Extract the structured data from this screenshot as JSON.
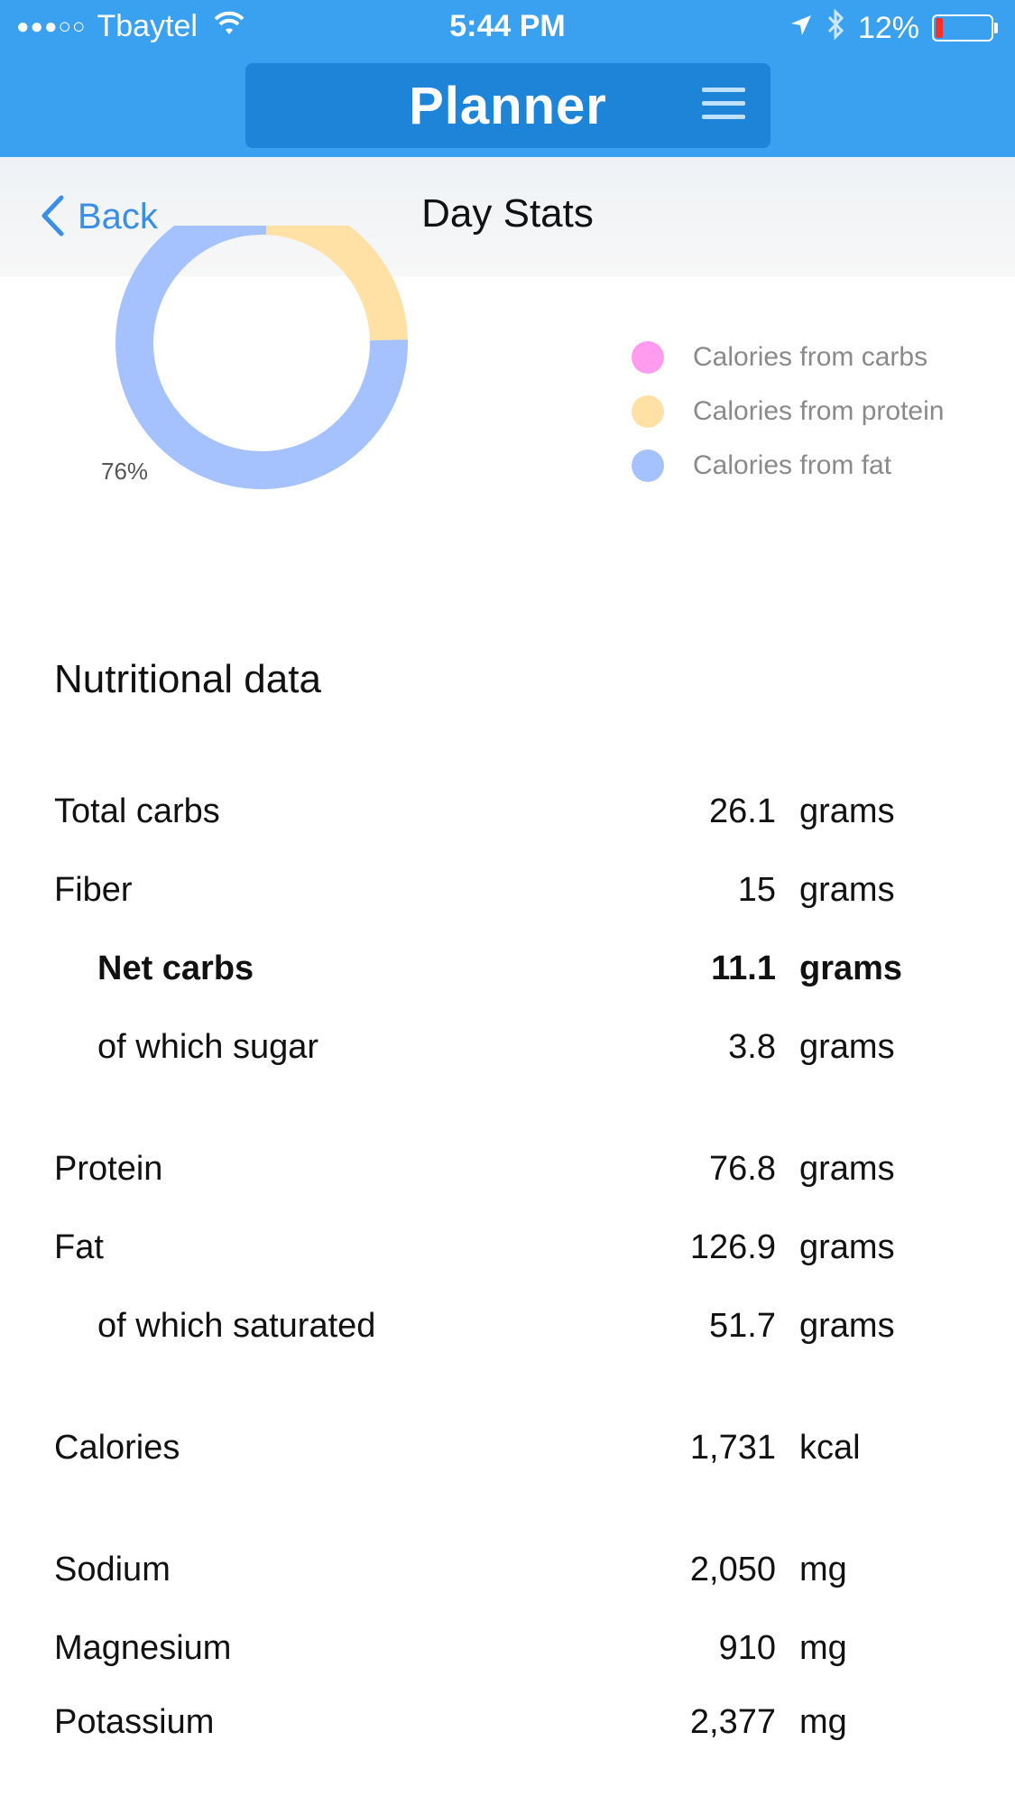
{
  "status_bar": {
    "signal": "●●●○○",
    "carrier": "Tbaytel",
    "time": "5:44 PM",
    "battery": "12%"
  },
  "header": {
    "title": "Planner"
  },
  "nav": {
    "back_label": "Back",
    "title": "Day Stats"
  },
  "chart_data": {
    "type": "pie",
    "slices": [
      {
        "name": "Calories from carbs",
        "value": 0,
        "color": "#ff9cf0"
      },
      {
        "name": "Calories from protein",
        "value": 24,
        "color": "#ffe1a6"
      },
      {
        "name": "Calories from fat",
        "value": 76,
        "color": "#a5c2ff"
      }
    ],
    "labels": [
      "76%"
    ]
  },
  "legend": [
    {
      "label": "Calories from carbs",
      "color": "#ff9cf0"
    },
    {
      "label": "Calories from protein",
      "color": "#ffe1a6"
    },
    {
      "label": "Calories from fat",
      "color": "#a5c2ff"
    }
  ],
  "nutrition": {
    "title": "Nutritional data",
    "rows": [
      {
        "label": "Total carbs",
        "value": "26.1",
        "unit": "grams"
      },
      {
        "label": "Fiber",
        "value": "15",
        "unit": "grams"
      },
      {
        "label": "Net carbs",
        "value": "11.1",
        "unit": "grams"
      },
      {
        "label": "of which sugar",
        "value": "3.8",
        "unit": "grams"
      },
      {
        "label": "Protein",
        "value": "76.8",
        "unit": "grams"
      },
      {
        "label": "Fat",
        "value": "126.9",
        "unit": "grams"
      },
      {
        "label": "of which saturated",
        "value": "51.7",
        "unit": "grams"
      },
      {
        "label": "Calories",
        "value": "1,731",
        "unit": "kcal"
      },
      {
        "label": "Sodium",
        "value": "2,050",
        "unit": "mg"
      },
      {
        "label": "Magnesium",
        "value": "910",
        "unit": "mg"
      },
      {
        "label": "Potassium",
        "value": "2,377",
        "unit": "mg"
      }
    ]
  }
}
